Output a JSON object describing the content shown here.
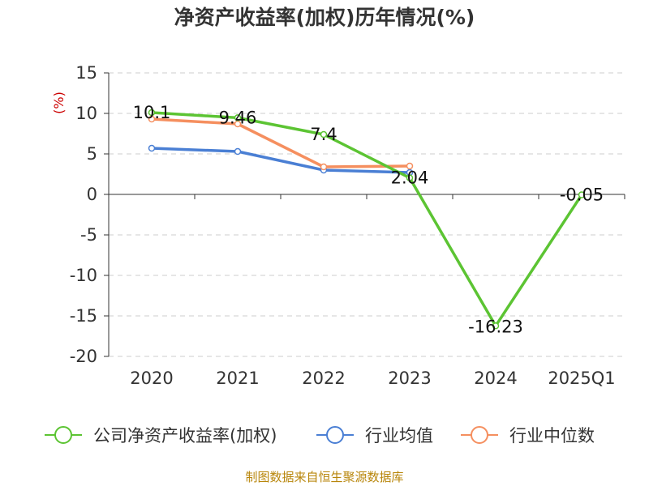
{
  "chart_data": {
    "type": "line",
    "title": "净资产收益率(加权)历年情况(%)",
    "y_unit": "(%)",
    "categories": [
      "2020",
      "2021",
      "2022",
      "2023",
      "2024",
      "2025Q1"
    ],
    "ylim": [
      -20,
      15
    ],
    "yticks": [
      15,
      10,
      5,
      0,
      -5,
      -10,
      -15,
      -20
    ],
    "grid": true,
    "legend_position": "bottom",
    "series": [
      {
        "name": "公司净资产收益率(加权)",
        "color": "#5cc433",
        "values": [
          10.1,
          9.46,
          7.4,
          2.04,
          -16.23,
          -0.05
        ],
        "labels": [
          "10.1",
          "9.46",
          "7.4",
          "2.04",
          "-16.23",
          "-0.05"
        ]
      },
      {
        "name": "行业均值",
        "color": "#4a7fd4",
        "values": [
          5.7,
          5.3,
          3.0,
          2.7,
          null,
          null
        ]
      },
      {
        "name": "行业中位数",
        "color": "#f58f5f",
        "values": [
          9.3,
          8.7,
          3.4,
          3.5,
          null,
          null
        ]
      }
    ]
  },
  "footer": "制图数据来自恒生聚源数据库"
}
